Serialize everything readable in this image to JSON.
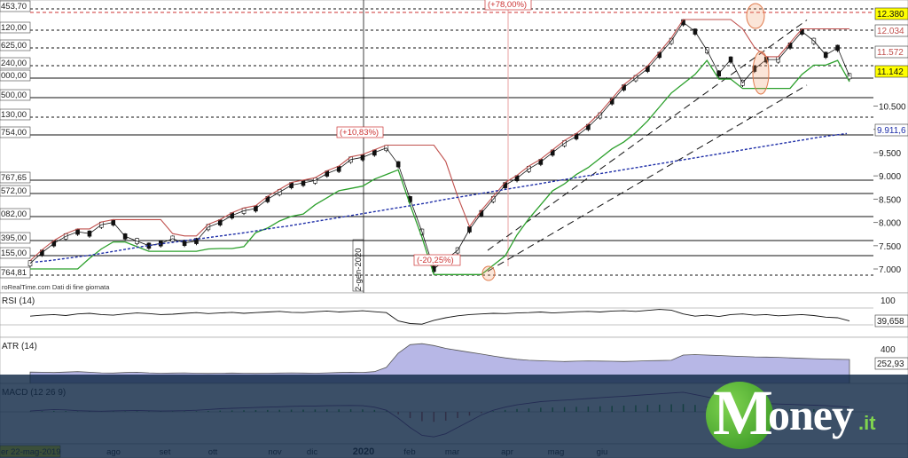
{
  "chart_data": [
    {
      "type": "line",
      "title": "",
      "source_note": "roRealTime.com  Dati di fine giornata",
      "xlabel": "",
      "ylabel": "",
      "ylim": [
        6600,
        12550
      ],
      "y_ticks": [
        7000,
        7500,
        8000,
        8500,
        9000,
        9500,
        10000,
        10500
      ],
      "y_tick_labels": [
        "7.000",
        "7.500",
        "8.000",
        "8.500",
        "9.000",
        "9.500",
        "10.000",
        "10.500"
      ],
      "x_month_labels": [
        "ago",
        "set",
        "ott",
        "nov",
        "dic",
        "2020",
        "feb",
        "mar",
        "apr",
        "mag",
        "giu"
      ],
      "x_start_label": "er 22-mag-2019",
      "vertical_marker_label": "2-gen-2020",
      "level_labels": [
        "453,70",
        "120,00",
        "625,00",
        "240,00",
        "000,00",
        "500,00",
        "130,00",
        "754,00",
        "767,65",
        "572,00",
        "082,00",
        "395,00",
        "155,00",
        "764,81"
      ],
      "right_badges": [
        {
          "text": "12.380",
          "color": "#ffff00"
        },
        {
          "text": "12.034",
          "color": "#ffffff"
        },
        {
          "text": "11.572",
          "color": "#ffffff"
        },
        {
          "text": "11.142",
          "color": "#ffff00"
        },
        {
          "text": "9.911,6",
          "color": "#ffffff"
        }
      ],
      "annotations": [
        "(+78,00%)",
        "(+10,83%)",
        "(-20,25%)"
      ],
      "series": [
        {
          "values": [
            7120,
            7350,
            7550,
            7700,
            7800,
            7760,
            7950,
            8000,
            7700,
            7600,
            7500,
            7550,
            7650,
            7560,
            7600,
            7900,
            8000,
            8150,
            8250,
            8300,
            8500,
            8650,
            8800,
            8850,
            8900,
            9050,
            9150,
            9350,
            9400,
            9500,
            9600,
            9250,
            8500,
            7800,
            7000,
            7200,
            7400,
            7850,
            8200,
            8500,
            8800,
            8950,
            9150,
            9300,
            9500,
            9700,
            9850,
            10050,
            10300,
            10600,
            10900,
            11100,
            11300,
            11600,
            11900,
            12300,
            12100,
            11700,
            11200,
            11500,
            11000,
            11300,
            11500,
            11500,
            11800,
            12100,
            11900,
            11600,
            11750,
            11142
          ]
        },
        {
          "values": [
            7150,
            7180,
            7220,
            7260,
            7300,
            7350,
            7400,
            7450,
            7500,
            7540,
            7580,
            7620,
            7660,
            7700,
            7740,
            7780,
            7830,
            7880,
            7920,
            7970,
            8020,
            8070,
            8120,
            8170,
            8220,
            8270,
            8320,
            8370,
            8420,
            8480,
            8530,
            8580,
            8630,
            8680,
            8730,
            8780,
            8830,
            8880,
            8930,
            8980,
            9030,
            9080,
            9130,
            9180,
            9230,
            9280,
            9330,
            9380,
            9430,
            9480,
            9530,
            9580,
            9630,
            9680,
            9730,
            9780,
            9830,
            9870,
            9911
          ]
        }
      ],
      "channel": [
        {
          "label": "upper",
          "values": [
            [
              7400,
              7850
            ],
            [
              11700,
              12350
            ]
          ]
        },
        {
          "label": "lower",
          "values": [
            [
              6950,
              7450
            ],
            [
              10250,
              10950
            ]
          ]
        }
      ]
    },
    {
      "type": "line",
      "title": "RSI (14)",
      "last_value": "39,658",
      "y_tick_labels": [
        "100"
      ],
      "series": [
        {
          "values": [
            55,
            58,
            60,
            57,
            62,
            64,
            60,
            58,
            62,
            65,
            63,
            60,
            61,
            64,
            66,
            63,
            65,
            67,
            64,
            66,
            68,
            70,
            67,
            66,
            69,
            71,
            68,
            70,
            72,
            69,
            66,
            40,
            32,
            30,
            42,
            50,
            56,
            60,
            62,
            64,
            63,
            65,
            66,
            68,
            65,
            67,
            69,
            70,
            68,
            71,
            72,
            70,
            73,
            76,
            74,
            62,
            55,
            58,
            54,
            60,
            62,
            58,
            60,
            56,
            58,
            60,
            57,
            52,
            50,
            40
          ]
        }
      ]
    },
    {
      "type": "area",
      "title": "ATR (14)",
      "last_value": "252,93",
      "y_tick_labels": [
        "400"
      ],
      "series": [
        {
          "values": [
            120,
            118,
            115,
            120,
            125,
            118,
            112,
            110,
            115,
            118,
            112,
            108,
            110,
            112,
            108,
            106,
            108,
            110,
            108,
            106,
            108,
            110,
            112,
            110,
            108,
            112,
            115,
            118,
            116,
            125,
            170,
            320,
            410,
            420,
            400,
            370,
            350,
            330,
            310,
            290,
            270,
            255,
            245,
            240,
            235,
            232,
            235,
            238,
            236,
            234,
            232,
            235,
            240,
            242,
            245,
            300,
            305,
            300,
            295,
            290,
            285,
            280,
            278,
            276,
            270,
            265,
            262,
            258,
            255,
            253
          ]
        }
      ]
    },
    {
      "type": "line",
      "title": "MACD (12 26 9)",
      "series": [
        {
          "values": [
            10,
            20,
            30,
            25,
            15,
            10,
            8,
            12,
            15,
            18,
            14,
            10,
            12,
            15,
            20,
            30,
            40,
            45,
            50,
            55,
            60,
            65,
            70,
            72,
            75,
            78,
            80,
            82,
            78,
            60,
            20,
            -80,
            -200,
            -300,
            -320,
            -280,
            -200,
            -120,
            -40,
            20,
            60,
            90,
            110,
            130,
            140,
            150,
            160,
            170,
            180,
            190,
            200,
            210,
            220,
            230,
            240,
            250,
            220,
            190,
            160,
            140,
            120,
            110,
            105,
            100,
            95,
            90,
            85,
            80,
            70,
            60
          ]
        }
      ]
    }
  ],
  "branding": {
    "name": "oney",
    "suffix": ".it"
  }
}
